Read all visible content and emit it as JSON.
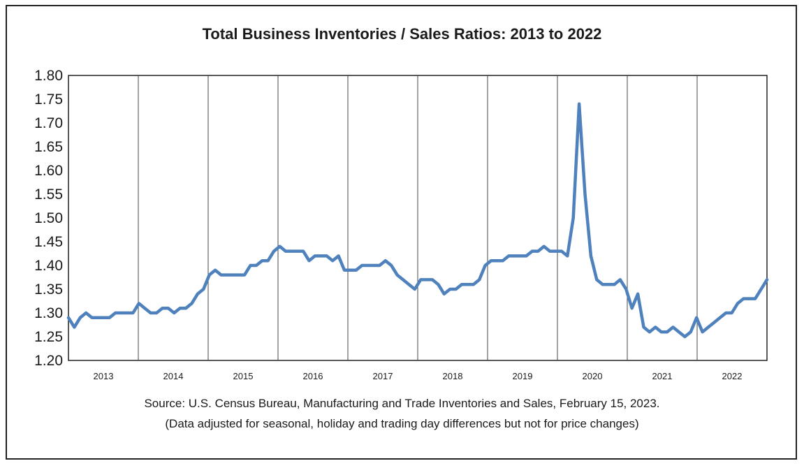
{
  "chart_data": {
    "type": "line",
    "title": "Total Business Inventories / Sales Ratios: 2013 to 2022",
    "source_line1": "Source: U.S. Census Bureau, Manufacturing and Trade Inventories and Sales, February 15, 2023.",
    "source_line2": "(Data adjusted for seasonal, holiday and trading day differences but not for price changes)",
    "xlabel": "",
    "ylabel": "",
    "ylim": [
      1.2,
      1.8
    ],
    "yticks": [
      "1.20",
      "1.25",
      "1.30",
      "1.35",
      "1.40",
      "1.45",
      "1.50",
      "1.55",
      "1.60",
      "1.65",
      "1.70",
      "1.75",
      "1.80"
    ],
    "year_labels": [
      "2013",
      "2014",
      "2015",
      "2016",
      "2017",
      "2018",
      "2019",
      "2020",
      "2021",
      "2022"
    ],
    "grid": "vertical year separators",
    "legend": "none",
    "line_color": "#4f81bd",
    "series": [
      {
        "values": [
          1.29,
          1.27,
          1.29,
          1.3,
          1.29,
          1.29,
          1.29,
          1.29,
          1.3,
          1.3,
          1.3,
          1.3,
          1.32,
          1.31,
          1.3,
          1.3,
          1.31,
          1.31,
          1.3,
          1.31,
          1.31,
          1.32,
          1.34,
          1.35,
          1.38,
          1.39,
          1.38,
          1.38,
          1.38,
          1.38,
          1.38,
          1.4,
          1.4,
          1.41,
          1.41,
          1.43,
          1.44,
          1.43,
          1.43,
          1.43,
          1.43,
          1.41,
          1.42,
          1.42,
          1.42,
          1.41,
          1.42,
          1.39,
          1.39,
          1.39,
          1.4,
          1.4,
          1.4,
          1.4,
          1.41,
          1.4,
          1.38,
          1.37,
          1.36,
          1.35,
          1.37,
          1.37,
          1.37,
          1.36,
          1.34,
          1.35,
          1.35,
          1.36,
          1.36,
          1.36,
          1.37,
          1.4,
          1.41,
          1.41,
          1.41,
          1.42,
          1.42,
          1.42,
          1.42,
          1.43,
          1.43,
          1.44,
          1.43,
          1.43,
          1.43,
          1.42,
          1.5,
          1.74,
          1.55,
          1.42,
          1.37,
          1.36,
          1.36,
          1.36,
          1.37,
          1.35,
          1.31,
          1.34,
          1.27,
          1.26,
          1.27,
          1.26,
          1.26,
          1.27,
          1.26,
          1.25,
          1.26,
          1.29,
          1.26,
          1.27,
          1.28,
          1.29,
          1.3,
          1.3,
          1.32,
          1.33,
          1.33,
          1.33,
          1.35,
          1.37
        ]
      }
    ]
  }
}
